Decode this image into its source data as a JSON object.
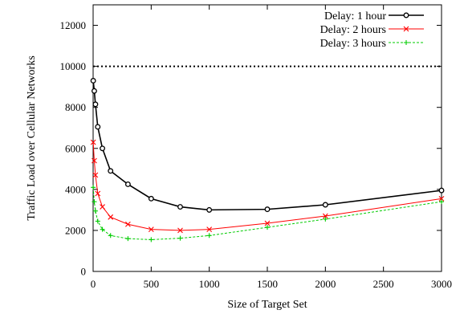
{
  "chart_data": {
    "type": "line",
    "xlabel": "Size of Target Set",
    "ylabel": "Traffic Load over Cellular Networks",
    "xlim": [
      0,
      3000
    ],
    "ylim": [
      0,
      13000
    ],
    "xticks": [
      0,
      500,
      1000,
      1500,
      2000,
      2500,
      3000
    ],
    "yticks": [
      0,
      2000,
      4000,
      6000,
      8000,
      10000,
      12000
    ],
    "grid": false,
    "legend_position": "top-right",
    "reference_line": {
      "y": 10000,
      "style": "dotted",
      "color": "#000000"
    },
    "series": [
      {
        "name": "Delay: 1 hour",
        "color": "#000000",
        "marker": "circle",
        "line": "solid",
        "x": [
          1,
          10,
          20,
          40,
          80,
          150,
          300,
          500,
          750,
          1000,
          1500,
          2000,
          3000
        ],
        "y": [
          9300,
          8800,
          8150,
          7050,
          6000,
          4900,
          4250,
          3550,
          3150,
          3000,
          3030,
          3250,
          3950
        ]
      },
      {
        "name": "Delay: 2 hours",
        "color": "#ff0000",
        "marker": "x",
        "line": "solid",
        "x": [
          1,
          10,
          20,
          40,
          80,
          150,
          300,
          500,
          750,
          1000,
          1500,
          2000,
          3000
        ],
        "y": [
          6300,
          5400,
          4700,
          3800,
          3150,
          2650,
          2300,
          2050,
          2000,
          2050,
          2350,
          2700,
          3550
        ]
      },
      {
        "name": "Delay: 3 hours",
        "color": "#00cc00",
        "marker": "plus",
        "line": "dashed",
        "x": [
          1,
          10,
          20,
          40,
          80,
          150,
          300,
          500,
          750,
          1000,
          1500,
          2000,
          3000
        ],
        "y": [
          4100,
          3400,
          2950,
          2450,
          2050,
          1750,
          1600,
          1550,
          1620,
          1750,
          2150,
          2550,
          3400
        ]
      }
    ]
  }
}
